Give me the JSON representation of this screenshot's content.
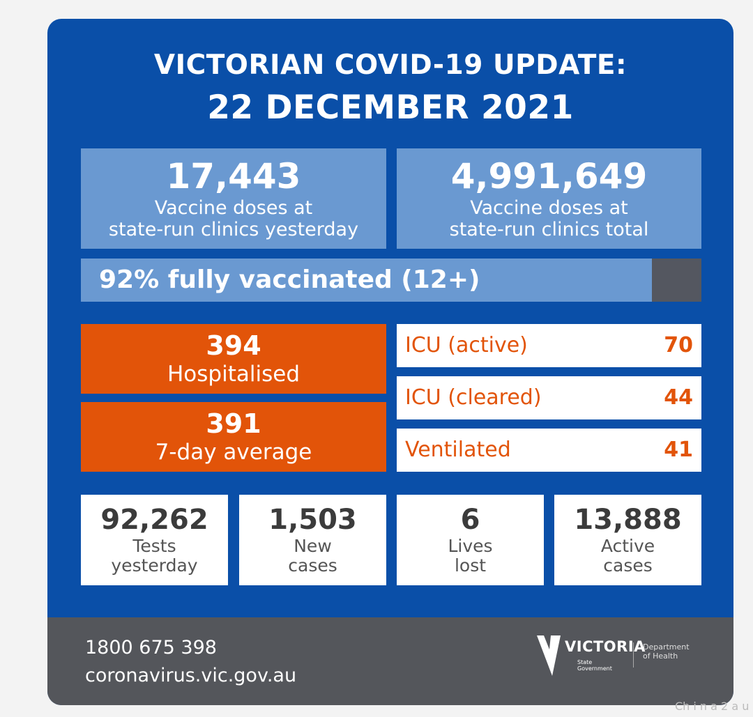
{
  "header": {
    "title_line1": "VICTORIAN COVID-19 UPDATE:",
    "title_line2": "22 DECEMBER 2021"
  },
  "vaccine": {
    "yesterday": {
      "value": "17,443",
      "line1": "Vaccine doses at",
      "line2": "state-run clinics yesterday"
    },
    "total": {
      "value": "4,991,649",
      "line1": "Vaccine doses at",
      "line2": "state-run clinics total"
    },
    "fully_vaccinated_label": "92% fully vaccinated (12+)",
    "fully_vaccinated_percent": 92
  },
  "hospital": {
    "hospitalised": {
      "value": "394",
      "label": "Hospitalised"
    },
    "average": {
      "value": "391",
      "label": "7-day average"
    },
    "rows": [
      {
        "label": "ICU (active)",
        "value": "70"
      },
      {
        "label": "ICU (cleared)",
        "value": "44"
      },
      {
        "label": "Ventilated",
        "value": "41"
      }
    ]
  },
  "stats": [
    {
      "value": "92,262",
      "line1": "Tests",
      "line2": "yesterday"
    },
    {
      "value": "1,503",
      "line1": "New",
      "line2": "cases"
    },
    {
      "value": "6",
      "line1": "Lives",
      "line2": "lost"
    },
    {
      "value": "13,888",
      "line1": "Active",
      "line2": "cases"
    }
  ],
  "footer": {
    "phone": "1800 675 398",
    "website": "coronavirus.vic.gov.au",
    "logo_text": "VICTORIA",
    "logo_sub1": "State",
    "logo_sub2": "Government",
    "dept_line1": "Department",
    "dept_line2": "of Health"
  },
  "watermark": "Ch i n a 2 a u",
  "colors": {
    "blue": "#0a4fa8",
    "light_blue": "#6a99d1",
    "orange": "#e25409",
    "footer": "#54565b"
  }
}
